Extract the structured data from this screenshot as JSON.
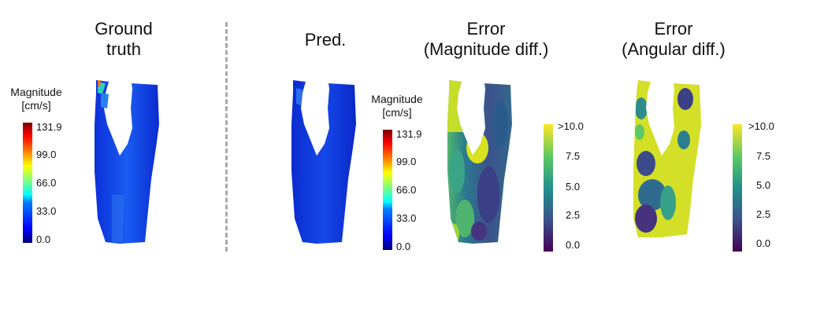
{
  "titles": {
    "ground_truth": "Ground\ntruth",
    "pred": "Pred.",
    "error_mag": "Error\n(Magnitude diff.)",
    "error_ang": "Error\n(Angular diff.)"
  },
  "colorbars": {
    "magnitude_gt": {
      "label": "Magnitude\n[cm/s]",
      "ticks": [
        "131.9",
        "99.0",
        "66.0",
        "33.0",
        "0.0"
      ],
      "colormap": "jet"
    },
    "magnitude_pred": {
      "label": "Magnitude\n[cm/s]",
      "ticks": [
        "131.9",
        "99.0",
        "66.0",
        "33.0",
        "0.0"
      ],
      "colormap": "jet"
    },
    "error_mag": {
      "ticks": [
        ">10.0",
        "7.5",
        "5.0",
        "2.5",
        "0.0"
      ],
      "colormap": "viridis"
    },
    "error_ang": {
      "ticks": [
        ">10.0",
        "7.5",
        "5.0",
        "2.5",
        "0.0"
      ],
      "colormap": "viridis"
    }
  },
  "colors": {
    "jet": [
      "#00007f",
      "#0000ff",
      "#007fff",
      "#00ffff",
      "#7fff7f",
      "#ffff00",
      "#ff7f00",
      "#ff0000",
      "#7f0000"
    ],
    "viridis": [
      "#440154",
      "#3b528b",
      "#21918c",
      "#5ec962",
      "#fde725"
    ],
    "divider": "#a9a9a9"
  }
}
